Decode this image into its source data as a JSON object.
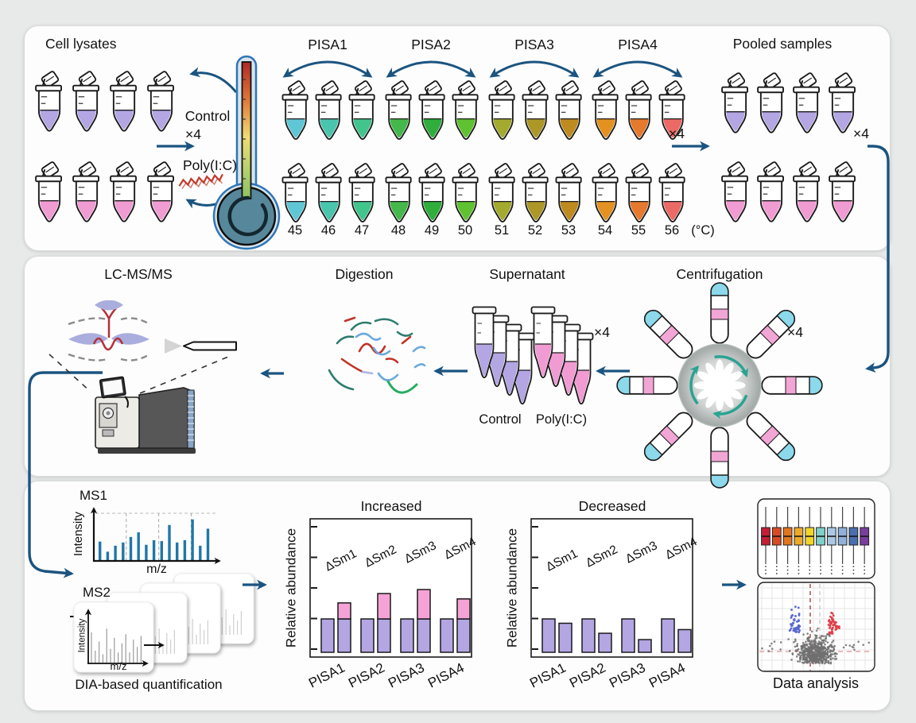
{
  "top": {
    "cell_lysates_label": "Cell lysates",
    "times4": "×4",
    "control_label": "Control",
    "polyic_label": "Poly(I:C)",
    "lysate_rows": {
      "control_colors": [
        "#b3a6e3",
        "#b3a6e3",
        "#b3a6e3",
        "#b3a6e3"
      ],
      "polyic_colors": [
        "#f19bd3",
        "#f19bd3",
        "#f19bd3",
        "#f19bd3"
      ]
    },
    "pisa_groups": [
      {
        "label": "PISA1",
        "temps": [
          "45",
          "46",
          "47"
        ],
        "colors": [
          "#5fc6d6",
          "#49c5ae",
          "#42c58c"
        ]
      },
      {
        "label": "PISA2",
        "temps": [
          "48",
          "49",
          "50"
        ],
        "colors": [
          "#44b84a",
          "#2fae3c",
          "#5fc231"
        ]
      },
      {
        "label": "PISA3",
        "temps": [
          "51",
          "52",
          "53"
        ],
        "colors": [
          "#a4aa2e",
          "#ac9727",
          "#bd8b1f"
        ]
      },
      {
        "label": "PISA4",
        "temps": [
          "54",
          "55",
          "56"
        ],
        "colors": [
          "#e39120",
          "#e5792e",
          "#ec6a66"
        ]
      }
    ],
    "celsius_label": "(°C)",
    "pooled_label": "Pooled samples"
  },
  "middle": {
    "lcmsms_label": "LC-MS/MS",
    "digestion_label": "Digestion",
    "supernatant_label": "Supernatant",
    "centrifugation_label": "Centrifugation",
    "times4": "×4",
    "control_label": "Control",
    "polyic_label": "Poly(I:C)",
    "supernatant_colors": {
      "control": [
        "#b3a6e3",
        "#b3a6e3",
        "#b3a6e3",
        "#b3a6e3"
      ],
      "polyic": [
        "#f19bd3",
        "#f19bd3",
        "#f19bd3",
        "#f19bd3"
      ]
    }
  },
  "bottom": {
    "ms1_label": "MS1",
    "ms2_label": "MS2",
    "intensity_label": "Intensity",
    "mz_label": "m/z",
    "dia_label": "DIA-based quantification",
    "data_analysis_label": "Data analysis"
  },
  "colors": {
    "arrow_blue": "#1b5480",
    "teal_arrow": "#2aa392",
    "control_purple": "#b3a6e3",
    "polyic_pink": "#f19bd3",
    "centrifuge_cap_blue": "#8bd9ea",
    "rna_red": "#c0392b"
  },
  "chart_data": [
    {
      "id": "ms1_spectrum",
      "type": "bar",
      "title": "MS1",
      "xlabel": "m/z",
      "ylabel": "Intensity",
      "values": [
        0.42,
        0.2,
        0.33,
        0.4,
        0.52,
        0.62,
        0.35,
        0.45,
        0.43,
        0.78,
        0.4,
        0.45,
        0.9,
        0.33,
        0.7
      ],
      "dia_window_fractions": [
        0.26,
        0.52,
        0.78
      ],
      "bar_color": "#2077a8"
    },
    {
      "id": "ms2_spectrum",
      "type": "bar",
      "title": "MS2",
      "xlabel": "m/z",
      "ylabel": "Intensity",
      "stacked_frames": 4,
      "values": [
        0.85,
        0.35,
        0.6,
        0.25,
        0.95,
        0.4,
        0.7,
        0.3,
        0.55,
        0.8,
        0.3,
        0.65,
        0.45,
        0.75
      ],
      "bar_color": "#a0a0a0"
    },
    {
      "id": "increased",
      "type": "grouped-stacked-bar",
      "title": "Increased",
      "ylabel": "Relative abundance",
      "categories": [
        "PISA1",
        "PISA2",
        "PISA3",
        "PISA4"
      ],
      "series": [
        {
          "name": "Control",
          "color": "#b3a6e3",
          "values": [
            1.0,
            1.0,
            1.0,
            1.0
          ]
        },
        {
          "name": "Poly(I:C)",
          "color": "#f5a3d7",
          "values": [
            1.48,
            1.76,
            1.88,
            1.6
          ]
        }
      ],
      "bar_labels": [
        "ΔSm1",
        "ΔSm2",
        "ΔSm3",
        "ΔSm4"
      ]
    },
    {
      "id": "decreased",
      "type": "grouped-bar",
      "title": "Decreased",
      "ylabel": "Relative abundance",
      "categories": [
        "PISA1",
        "PISA2",
        "PISA3",
        "PISA4"
      ],
      "series": [
        {
          "name": "Control",
          "color": "#b3a6e3",
          "values": [
            1.0,
            1.0,
            1.0,
            1.0
          ]
        },
        {
          "name": "Poly(I:C)",
          "color": "#b3a6e3",
          "values": [
            0.87,
            0.57,
            0.38,
            0.68
          ]
        }
      ],
      "bar_labels": [
        "ΔSm1",
        "ΔSm2",
        "ΔSm3",
        "ΔSm4"
      ]
    },
    {
      "id": "boxplots",
      "type": "boxplot",
      "box_colors": [
        "#c21f36",
        "#d94a23",
        "#e2761f",
        "#edaa27",
        "#f2d52a",
        "#7fd0c8",
        "#a9c8e4",
        "#8fb1dc",
        "#4a6fae",
        "#7a3f9d"
      ]
    },
    {
      "id": "volcano",
      "type": "scatter",
      "clusters": [
        {
          "name": "non-significant",
          "color": "#707070",
          "count": 560
        },
        {
          "name": "decreased",
          "color": "#5868d0",
          "count": 48
        },
        {
          "name": "increased",
          "color": "#e04048",
          "count": 48
        }
      ],
      "threshold_lines": {
        "vline_red": "#993333",
        "vline_gray": "#c0c0c0",
        "hline_pink": "#dd9090"
      }
    }
  ]
}
